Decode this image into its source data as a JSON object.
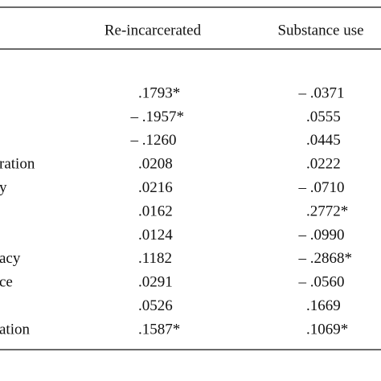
{
  "table": {
    "header": [
      "Re-incarcerated",
      "Substance use"
    ],
    "rows": [
      [
        "",
        ".1793*",
        "– .0371"
      ],
      [
        "",
        "– .1957*",
        ".0555"
      ],
      [
        "",
        "– .1260",
        ".0445"
      ],
      [
        "ration",
        ".0208",
        ".0222"
      ],
      [
        "y",
        ".0216",
        "– .0710"
      ],
      [
        "",
        ".0162",
        ".2772*"
      ],
      [
        "",
        ".0124",
        "– .0990"
      ],
      [
        "acy",
        ".1182",
        "– .2868*"
      ],
      [
        "ce",
        ".0291",
        "– .0560"
      ],
      [
        "",
        ".0526",
        ".1669"
      ],
      [
        "ation",
        ".1587*",
        ".1069*"
      ]
    ]
  }
}
